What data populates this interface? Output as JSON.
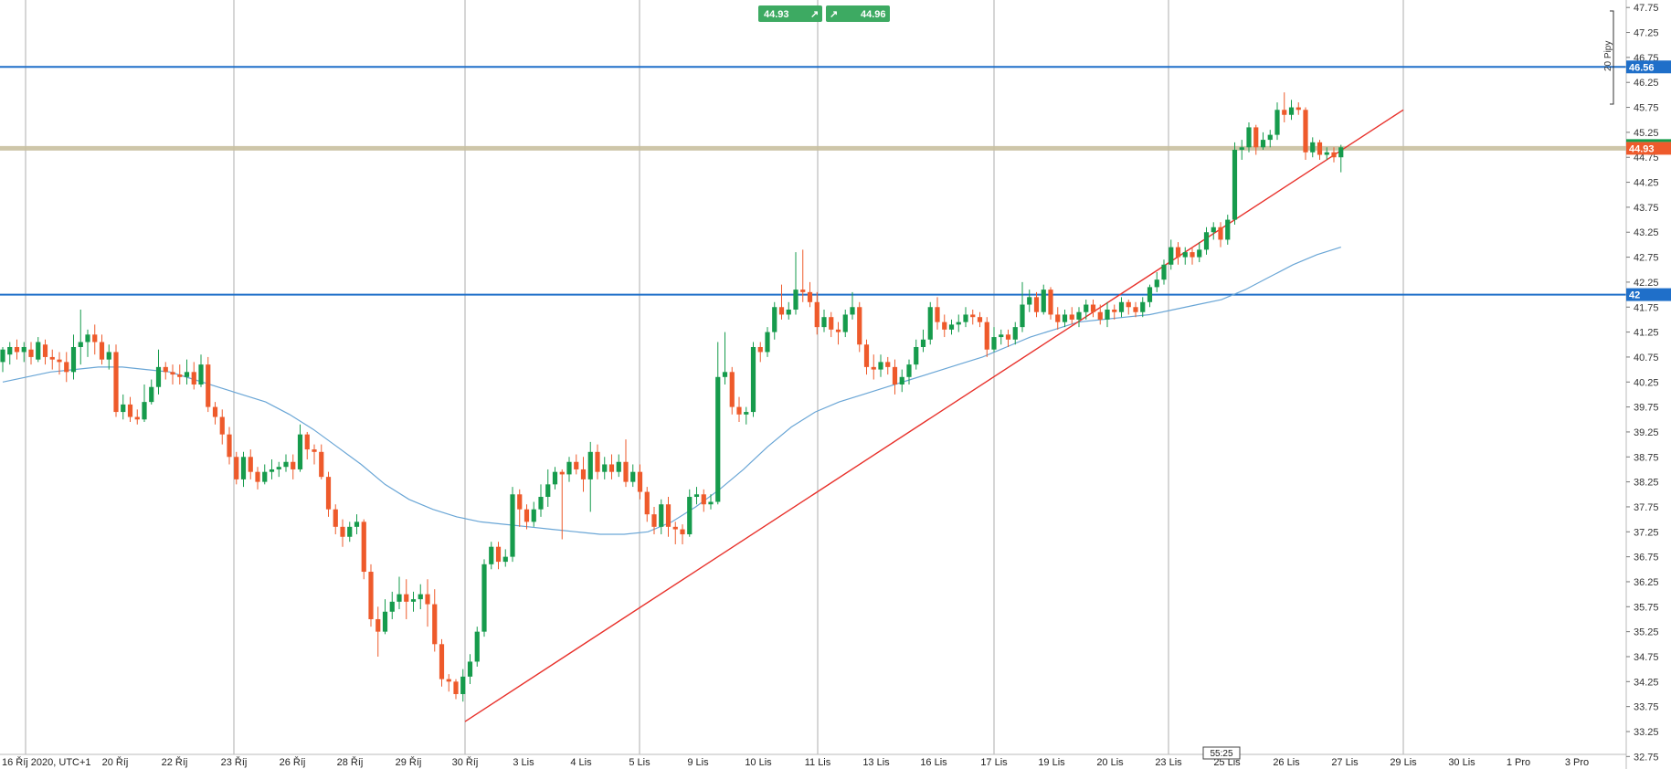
{
  "quote": {
    "sell": "44.93",
    "buy": "44.96",
    "sell_icon": "arrow-up-right-icon",
    "buy_icon": "arrow-up-right-icon"
  },
  "pips_label": "20 Pipy",
  "timer": "55:25",
  "colors": {
    "up": "#169b4c",
    "down": "#ee5a2b",
    "ma": "#6aa6d6",
    "trend": "#e8312b",
    "hline": "#1f6fc9",
    "current_line": "#c9c0a0",
    "current_tag": "#ee5a2b",
    "button": "#3daa62",
    "grid": "#9a9a9a",
    "pips_bracket": "#333333"
  },
  "chart_data": {
    "type": "candlestick",
    "title": "",
    "xlabel": "",
    "ylabel": "",
    "ylim": [
      32.5,
      47.9
    ],
    "y_ticks": [
      "47.75",
      "47.25",
      "46.75",
      "46.25",
      "45.75",
      "45.25",
      "44.75",
      "44.25",
      "43.75",
      "43.25",
      "42.75",
      "42.25",
      "41.75",
      "41.25",
      "40.75",
      "40.25",
      "39.75",
      "39.25",
      "38.75",
      "38.25",
      "37.75",
      "37.25",
      "36.75",
      "36.25",
      "35.75",
      "35.25",
      "34.75",
      "34.25",
      "33.75",
      "33.25",
      "32.75"
    ],
    "x_labels": [
      "16 Říj 2020, UTC+1",
      "20 Říj",
      "22 Říj",
      "23 Říj",
      "26 Říj",
      "28 Říj",
      "29 Říj",
      "30 Říj",
      "3 Lis",
      "4 Lis",
      "5 Lis",
      "9 Lis",
      "10 Lis",
      "11 Lis",
      "13 Lis",
      "16 Lis",
      "17 Lis",
      "19 Lis",
      "20 Lis",
      "23 Lis",
      "25 Lis",
      "26 Lis",
      "27 Lis",
      "29 Lis",
      "30 Lis",
      "1 Pro",
      "3 Pro"
    ],
    "horizontal_lines": [
      {
        "price": 46.56,
        "label": "46.56"
      },
      {
        "price": 42.0,
        "label": "42"
      }
    ],
    "current_price": {
      "price": 44.93,
      "label": "44.93"
    },
    "trendline": {
      "from": {
        "label": "30 Říj",
        "price": 33.45
      },
      "to": {
        "label": "29 Lis",
        "price": 45.7
      }
    },
    "moving_average": [
      40.25,
      40.35,
      40.45,
      40.5,
      40.55,
      40.55,
      40.5,
      40.45,
      40.3,
      40.15,
      40.0,
      39.85,
      39.6,
      39.3,
      38.95,
      38.6,
      38.2,
      37.9,
      37.7,
      37.55,
      37.45,
      37.4,
      37.35,
      37.3,
      37.25,
      37.2,
      37.2,
      37.25,
      37.45,
      37.75,
      38.1,
      38.5,
      38.95,
      39.35,
      39.65,
      39.85,
      40.0,
      40.15,
      40.3,
      40.45,
      40.6,
      40.75,
      40.95,
      41.15,
      41.3,
      41.45,
      41.5,
      41.55,
      41.6,
      41.7,
      41.8,
      41.9,
      42.1,
      42.35,
      42.6,
      42.8,
      42.95
    ],
    "candles": [
      [
        40.65,
        40.9,
        40.45,
        40.95
      ],
      [
        40.8,
        40.95,
        40.6,
        41.05
      ],
      [
        40.95,
        40.85,
        40.7,
        41.1
      ],
      [
        40.85,
        40.95,
        40.65,
        41.05
      ],
      [
        40.9,
        40.75,
        40.6,
        41.05
      ],
      [
        40.7,
        41.05,
        40.65,
        41.15
      ],
      [
        41.0,
        40.75,
        40.6,
        41.1
      ],
      [
        40.75,
        40.7,
        40.5,
        40.9
      ],
      [
        40.7,
        40.65,
        40.4,
        40.85
      ],
      [
        40.65,
        40.45,
        40.25,
        40.85
      ],
      [
        40.45,
        40.95,
        40.3,
        41.2
      ],
      [
        40.95,
        41.05,
        40.6,
        41.7
      ],
      [
        41.05,
        41.2,
        40.75,
        41.3
      ],
      [
        41.2,
        41.05,
        40.8,
        41.4
      ],
      [
        41.05,
        40.7,
        40.6,
        41.2
      ],
      [
        40.7,
        40.85,
        40.5,
        41.0
      ],
      [
        40.85,
        39.65,
        39.55,
        41.0
      ],
      [
        39.65,
        39.8,
        39.5,
        40.0
      ],
      [
        39.8,
        39.55,
        39.45,
        39.95
      ],
      [
        39.55,
        39.5,
        39.4,
        39.7
      ],
      [
        39.5,
        39.85,
        39.45,
        40.2
      ],
      [
        39.85,
        40.15,
        39.8,
        40.3
      ],
      [
        40.15,
        40.55,
        40.0,
        40.9
      ],
      [
        40.55,
        40.45,
        40.3,
        40.65
      ],
      [
        40.45,
        40.4,
        40.2,
        40.6
      ],
      [
        40.4,
        40.35,
        40.2,
        40.6
      ],
      [
        40.35,
        40.45,
        40.2,
        40.7
      ],
      [
        40.45,
        40.2,
        40.1,
        40.65
      ],
      [
        40.2,
        40.6,
        40.15,
        40.8
      ],
      [
        40.6,
        39.75,
        39.65,
        40.75
      ],
      [
        39.75,
        39.55,
        39.4,
        39.85
      ],
      [
        39.55,
        39.2,
        39.0,
        39.7
      ],
      [
        39.2,
        38.75,
        38.6,
        39.35
      ],
      [
        38.75,
        38.3,
        38.2,
        38.85
      ],
      [
        38.3,
        38.75,
        38.15,
        38.85
      ],
      [
        38.75,
        38.45,
        38.3,
        38.9
      ],
      [
        38.45,
        38.25,
        38.1,
        38.55
      ],
      [
        38.25,
        38.45,
        38.2,
        38.6
      ],
      [
        38.45,
        38.5,
        38.3,
        38.7
      ],
      [
        38.5,
        38.55,
        38.35,
        38.65
      ],
      [
        38.55,
        38.65,
        38.45,
        38.8
      ],
      [
        38.65,
        38.5,
        38.3,
        38.8
      ],
      [
        38.5,
        39.2,
        38.45,
        39.4
      ],
      [
        39.2,
        38.9,
        38.7,
        39.25
      ],
      [
        38.9,
        38.85,
        38.6,
        39.0
      ],
      [
        38.85,
        38.35,
        38.3,
        39.0
      ],
      [
        38.35,
        37.7,
        37.55,
        38.45
      ],
      [
        37.7,
        37.35,
        37.2,
        37.8
      ],
      [
        37.35,
        37.15,
        36.95,
        37.5
      ],
      [
        37.15,
        37.35,
        37.05,
        37.45
      ],
      [
        37.35,
        37.45,
        37.2,
        37.6
      ],
      [
        37.45,
        36.45,
        36.3,
        37.5
      ],
      [
        36.45,
        35.5,
        35.35,
        36.6
      ],
      [
        35.5,
        35.25,
        34.75,
        35.75
      ],
      [
        35.25,
        35.65,
        35.2,
        35.9
      ],
      [
        35.65,
        35.85,
        35.5,
        36.05
      ],
      [
        35.85,
        36.0,
        35.7,
        36.35
      ],
      [
        36.0,
        35.85,
        35.5,
        36.3
      ],
      [
        35.85,
        35.9,
        35.65,
        36.05
      ],
      [
        35.9,
        36.0,
        35.7,
        36.2
      ],
      [
        36.0,
        35.8,
        35.35,
        36.3
      ],
      [
        35.8,
        35.0,
        34.85,
        36.1
      ],
      [
        35.0,
        34.3,
        34.15,
        35.1
      ],
      [
        34.3,
        34.25,
        34.05,
        34.4
      ],
      [
        34.25,
        34.0,
        33.9,
        34.3
      ],
      [
        34.0,
        34.35,
        33.85,
        34.5
      ],
      [
        34.35,
        34.65,
        34.2,
        34.8
      ],
      [
        34.65,
        35.25,
        34.55,
        35.35
      ],
      [
        35.25,
        36.6,
        35.15,
        36.7
      ],
      [
        36.6,
        36.95,
        36.5,
        37.05
      ],
      [
        36.95,
        36.65,
        36.5,
        37.05
      ],
      [
        36.65,
        36.75,
        36.55,
        36.9
      ],
      [
        36.75,
        38.0,
        36.65,
        38.15
      ],
      [
        38.0,
        37.7,
        37.35,
        38.1
      ],
      [
        37.7,
        37.45,
        37.3,
        37.8
      ],
      [
        37.45,
        37.7,
        37.35,
        37.85
      ],
      [
        37.7,
        37.95,
        37.55,
        38.2
      ],
      [
        37.95,
        38.2,
        37.75,
        38.5
      ],
      [
        38.2,
        38.45,
        38.1,
        38.55
      ],
      [
        38.45,
        38.4,
        37.1,
        38.5
      ],
      [
        38.4,
        38.65,
        38.25,
        38.75
      ],
      [
        38.65,
        38.5,
        38.4,
        38.8
      ],
      [
        38.5,
        38.3,
        38.05,
        38.75
      ],
      [
        38.3,
        38.85,
        37.65,
        39.05
      ],
      [
        38.85,
        38.45,
        38.3,
        39.0
      ],
      [
        38.45,
        38.6,
        38.3,
        38.75
      ],
      [
        38.6,
        38.45,
        38.3,
        38.8
      ],
      [
        38.45,
        38.65,
        38.35,
        38.8
      ],
      [
        38.65,
        38.25,
        38.15,
        39.1
      ],
      [
        38.25,
        38.45,
        38.15,
        38.6
      ],
      [
        38.45,
        38.05,
        37.9,
        38.6
      ],
      [
        38.05,
        37.6,
        37.45,
        38.15
      ],
      [
        37.6,
        37.35,
        37.2,
        37.75
      ],
      [
        37.35,
        37.8,
        37.2,
        37.9
      ],
      [
        37.8,
        37.35,
        37.15,
        37.95
      ],
      [
        37.35,
        37.3,
        37.0,
        37.45
      ],
      [
        37.3,
        37.2,
        37.0,
        37.4
      ],
      [
        37.2,
        37.95,
        37.15,
        38.1
      ],
      [
        37.95,
        38.0,
        37.8,
        38.15
      ],
      [
        38.0,
        37.8,
        37.65,
        38.1
      ],
      [
        37.8,
        37.85,
        37.7,
        38.0
      ],
      [
        37.85,
        40.35,
        37.8,
        41.05
      ],
      [
        40.35,
        40.45,
        40.2,
        41.25
      ],
      [
        40.45,
        39.75,
        39.6,
        40.55
      ],
      [
        39.75,
        39.6,
        39.45,
        39.95
      ],
      [
        39.6,
        39.65,
        39.4,
        39.75
      ],
      [
        39.65,
        40.95,
        39.55,
        41.05
      ],
      [
        40.95,
        40.85,
        40.65,
        41.05
      ],
      [
        40.85,
        41.25,
        40.75,
        41.35
      ],
      [
        41.25,
        41.75,
        41.1,
        41.85
      ],
      [
        41.75,
        41.6,
        41.5,
        42.2
      ],
      [
        41.6,
        41.7,
        41.5,
        41.85
      ],
      [
        41.7,
        42.1,
        41.6,
        42.85
      ],
      [
        42.1,
        42.05,
        41.85,
        42.9
      ],
      [
        42.05,
        41.85,
        41.75,
        42.25
      ],
      [
        41.85,
        41.35,
        41.2,
        42.05
      ],
      [
        41.35,
        41.55,
        41.25,
        41.7
      ],
      [
        41.55,
        41.3,
        41.15,
        41.65
      ],
      [
        41.3,
        41.25,
        41.0,
        41.45
      ],
      [
        41.25,
        41.6,
        41.15,
        41.7
      ],
      [
        41.6,
        41.75,
        41.5,
        42.05
      ],
      [
        41.75,
        41.0,
        40.85,
        41.85
      ],
      [
        41.0,
        40.55,
        40.4,
        41.1
      ],
      [
        40.55,
        40.5,
        40.3,
        40.8
      ],
      [
        40.5,
        40.65,
        40.35,
        40.8
      ],
      [
        40.65,
        40.55,
        40.4,
        40.75
      ],
      [
        40.55,
        40.2,
        40.0,
        40.7
      ],
      [
        40.2,
        40.35,
        40.05,
        40.5
      ],
      [
        40.35,
        40.6,
        40.2,
        40.7
      ],
      [
        40.6,
        40.95,
        40.5,
        41.1
      ],
      [
        40.95,
        41.1,
        40.85,
        41.3
      ],
      [
        41.1,
        41.75,
        41.0,
        41.85
      ],
      [
        41.75,
        41.45,
        41.3,
        41.95
      ],
      [
        41.45,
        41.3,
        41.15,
        41.6
      ],
      [
        41.3,
        41.4,
        41.2,
        41.5
      ],
      [
        41.4,
        41.45,
        41.25,
        41.6
      ],
      [
        41.45,
        41.6,
        41.35,
        41.75
      ],
      [
        41.6,
        41.55,
        41.4,
        41.7
      ],
      [
        41.55,
        41.45,
        41.35,
        41.65
      ],
      [
        41.45,
        40.9,
        40.75,
        41.55
      ],
      [
        40.9,
        41.15,
        40.85,
        41.35
      ],
      [
        41.15,
        41.2,
        41.0,
        41.3
      ],
      [
        41.2,
        41.1,
        40.95,
        41.3
      ],
      [
        41.1,
        41.35,
        41.0,
        41.45
      ],
      [
        41.35,
        41.8,
        41.25,
        42.25
      ],
      [
        41.8,
        41.95,
        41.65,
        42.1
      ],
      [
        41.95,
        41.65,
        41.55,
        42.05
      ],
      [
        41.65,
        42.1,
        41.6,
        42.2
      ],
      [
        42.1,
        41.6,
        41.5,
        42.15
      ],
      [
        41.6,
        41.45,
        41.3,
        41.75
      ],
      [
        41.45,
        41.6,
        41.35,
        41.7
      ],
      [
        41.6,
        41.5,
        41.4,
        41.75
      ],
      [
        41.5,
        41.65,
        41.35,
        41.75
      ],
      [
        41.65,
        41.8,
        41.5,
        41.9
      ],
      [
        41.8,
        41.65,
        41.55,
        41.9
      ],
      [
        41.65,
        41.5,
        41.4,
        41.8
      ],
      [
        41.5,
        41.7,
        41.35,
        41.85
      ],
      [
        41.7,
        41.65,
        41.5,
        41.8
      ],
      [
        41.65,
        41.85,
        41.55,
        41.95
      ],
      [
        41.85,
        41.75,
        41.6,
        41.9
      ],
      [
        41.75,
        41.65,
        41.55,
        41.85
      ],
      [
        41.65,
        41.85,
        41.55,
        41.95
      ],
      [
        41.85,
        42.15,
        41.75,
        42.2
      ],
      [
        42.15,
        42.3,
        42.05,
        42.45
      ],
      [
        42.3,
        42.6,
        42.2,
        42.7
      ],
      [
        42.6,
        42.95,
        42.5,
        43.1
      ],
      [
        42.95,
        42.75,
        42.6,
        43.05
      ],
      [
        42.75,
        42.85,
        42.6,
        42.95
      ],
      [
        42.85,
        42.75,
        42.6,
        42.95
      ],
      [
        42.75,
        42.9,
        42.65,
        43.05
      ],
      [
        42.9,
        43.25,
        42.8,
        43.35
      ],
      [
        43.25,
        43.35,
        43.1,
        43.45
      ],
      [
        43.35,
        43.1,
        42.95,
        43.45
      ],
      [
        43.1,
        43.5,
        43.0,
        43.6
      ],
      [
        43.5,
        44.9,
        43.4,
        45.05
      ],
      [
        44.9,
        44.95,
        44.7,
        45.1
      ],
      [
        44.95,
        45.35,
        44.85,
        45.45
      ],
      [
        45.35,
        44.95,
        44.8,
        45.4
      ],
      [
        44.95,
        45.1,
        44.9,
        45.25
      ],
      [
        45.1,
        45.2,
        44.95,
        45.3
      ],
      [
        45.2,
        45.7,
        45.1,
        45.85
      ],
      [
        45.7,
        45.6,
        45.45,
        46.05
      ],
      [
        45.6,
        45.75,
        45.5,
        45.9
      ],
      [
        45.75,
        45.7,
        45.6,
        45.85
      ],
      [
        45.7,
        44.85,
        44.7,
        45.75
      ],
      [
        44.85,
        45.05,
        44.75,
        45.15
      ],
      [
        45.05,
        44.8,
        44.7,
        45.1
      ],
      [
        44.8,
        44.85,
        44.7,
        44.95
      ],
      [
        44.85,
        44.75,
        44.65,
        44.95
      ],
      [
        44.75,
        44.95,
        44.45,
        45.0
      ]
    ]
  }
}
